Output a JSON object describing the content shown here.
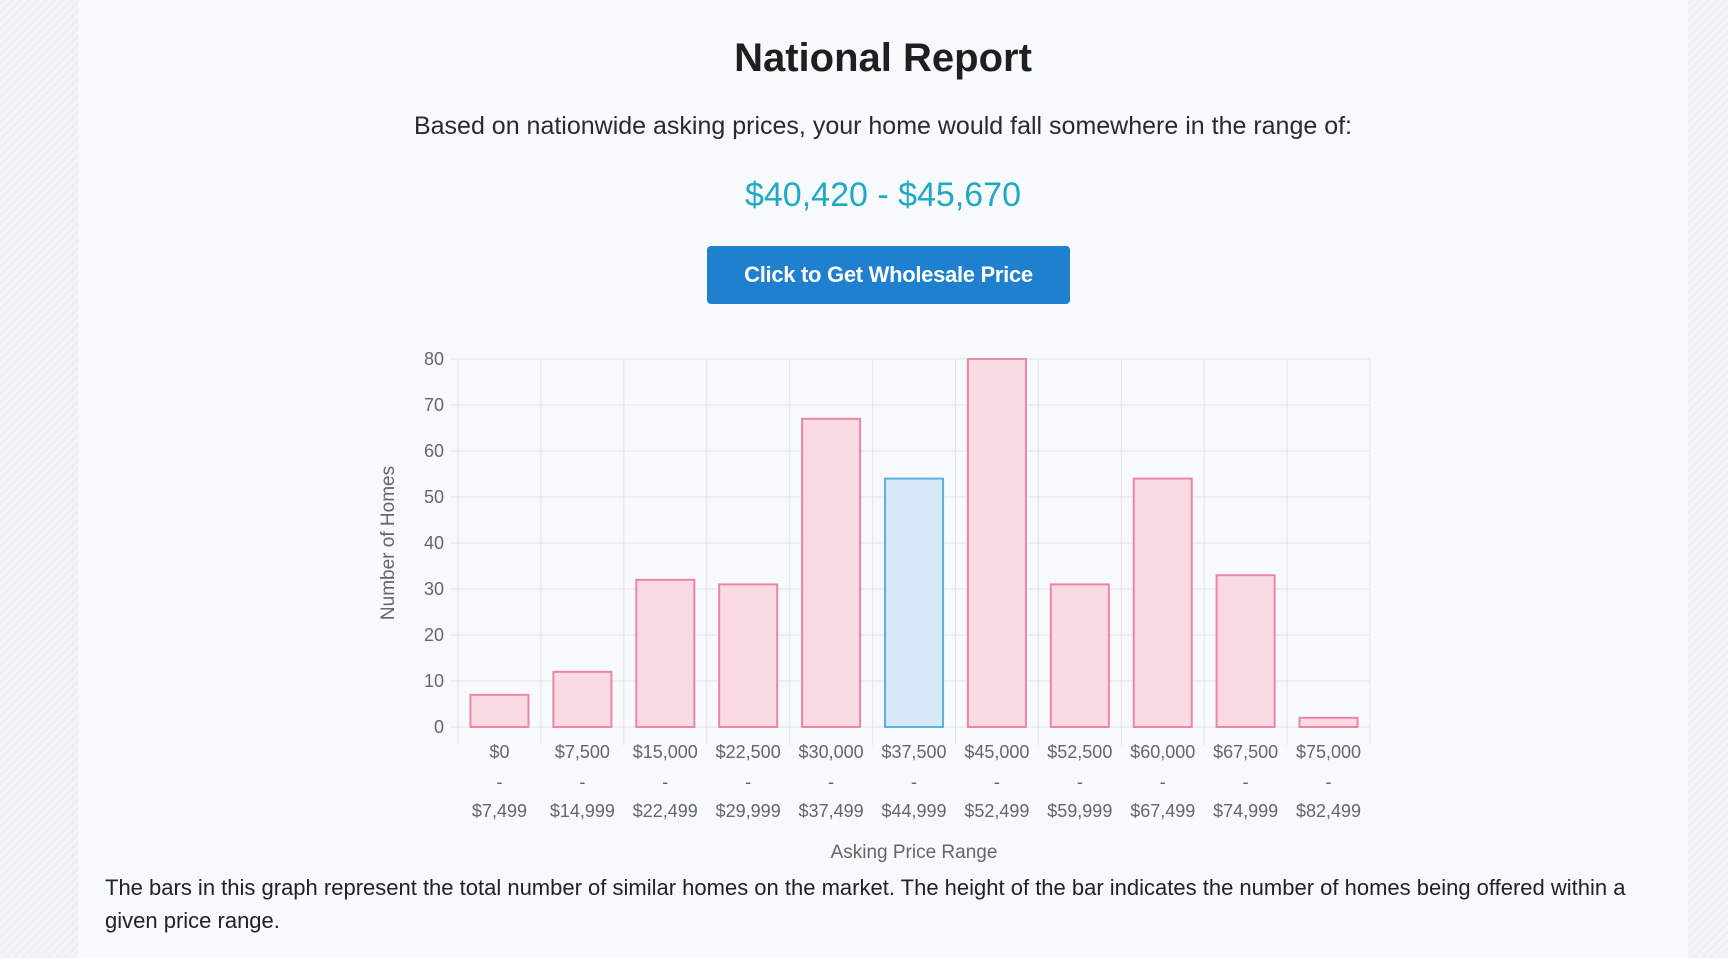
{
  "page": {
    "title": "National Report",
    "subtitle": "Based on nationwide asking prices, your home would fall somewhere in the range of:",
    "price_range": "$40,420 - $45,670",
    "cta_label": "Click to Get Wholesale Price",
    "footnote": "The bars in this graph represent the total number of similar homes on the market. The height of the bar indicates the number of homes being offered within a given price range."
  },
  "colors": {
    "accent": "#1fa9c6",
    "button": "#1f80cf",
    "bar_fill": "#fbdbe3",
    "bar_stroke": "#ef85a6",
    "highlight_fill": "#d6e8f6",
    "highlight_stroke": "#5ab2dc",
    "grid": "#e2e5e8",
    "axis_text": "#666666"
  },
  "chart_data": {
    "type": "bar",
    "xlabel": "Asking Price Range",
    "ylabel": "Number of Homes",
    "ylim": [
      0,
      80
    ],
    "yticks": [
      0,
      10,
      20,
      30,
      40,
      50,
      60,
      70,
      80
    ],
    "grid": true,
    "categories": [
      {
        "low": "$0",
        "sep": "-",
        "high": "$7,499"
      },
      {
        "low": "$7,500",
        "sep": "-",
        "high": "$14,999"
      },
      {
        "low": "$15,000",
        "sep": "-",
        "high": "$22,499"
      },
      {
        "low": "$22,500",
        "sep": "-",
        "high": "$29,999"
      },
      {
        "low": "$30,000",
        "sep": "-",
        "high": "$37,499"
      },
      {
        "low": "$37,500",
        "sep": "-",
        "high": "$44,999"
      },
      {
        "low": "$45,000",
        "sep": "-",
        "high": "$52,499"
      },
      {
        "low": "$52,500",
        "sep": "-",
        "high": "$59,999"
      },
      {
        "low": "$60,000",
        "sep": "-",
        "high": "$67,499"
      },
      {
        "low": "$67,500",
        "sep": "-",
        "high": "$74,999"
      },
      {
        "low": "$75,000",
        "sep": "-",
        "high": "$82,499"
      }
    ],
    "values": [
      7,
      12,
      32,
      31,
      67,
      54,
      80,
      31,
      54,
      33,
      2
    ],
    "highlight_index": 5
  }
}
